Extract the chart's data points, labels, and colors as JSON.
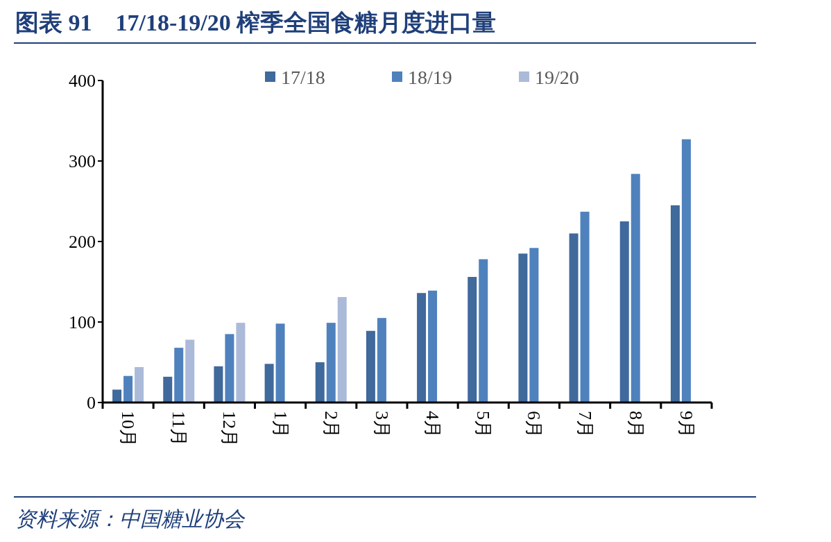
{
  "chart_data": {
    "type": "bar",
    "title": "图表 91　17/18-19/20 榨季全国食糖月度进口量",
    "categories": [
      "10月",
      "11月",
      "12月",
      "1月",
      "2月",
      "3月",
      "4月",
      "5月",
      "6月",
      "7月",
      "8月",
      "9月"
    ],
    "series": [
      {
        "name": "17/18",
        "color": "#40699c",
        "values": [
          16,
          32,
          45,
          48,
          50,
          89,
          136,
          156,
          185,
          210,
          225,
          245
        ]
      },
      {
        "name": "18/19",
        "color": "#4f81bd",
        "values": [
          33,
          68,
          85,
          98,
          99,
          105,
          139,
          178,
          192,
          237,
          284,
          327
        ]
      },
      {
        "name": "19/20",
        "color": "#abbad9",
        "values": [
          44,
          78,
          99,
          null,
          131,
          null,
          null,
          null,
          null,
          null,
          null,
          null
        ]
      }
    ],
    "ylim": [
      0,
      400
    ],
    "yticks": [
      0,
      100,
      200,
      300,
      400
    ],
    "grid": false,
    "legend": "top",
    "annotations": [
      "资料来源：中国糖业协会"
    ]
  }
}
